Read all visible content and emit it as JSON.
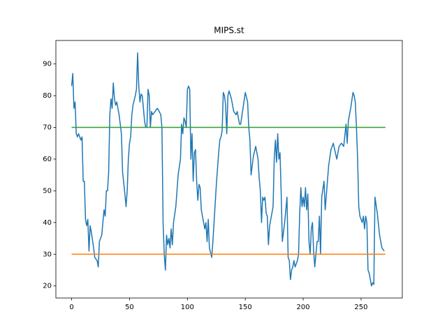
{
  "chart_data": {
    "type": "line",
    "title": "MIPS.st",
    "xlim": [
      -13.6,
      285.6
    ],
    "ylim": [
      16.2,
      97.4
    ],
    "xticks": [
      0,
      50,
      100,
      150,
      200,
      250
    ],
    "yticks": [
      20,
      30,
      40,
      50,
      60,
      70,
      80,
      90
    ],
    "series": [
      {
        "color": "#1f77b4",
        "x": [
          0,
          1,
          2,
          3,
          4,
          5,
          6,
          8,
          9,
          10,
          11,
          12,
          13,
          14,
          15,
          16,
          17,
          19,
          20,
          22,
          23,
          24,
          26,
          27,
          28,
          29,
          30,
          31,
          32,
          33,
          34,
          35,
          36,
          37,
          38,
          39,
          41,
          43,
          44,
          46,
          47,
          48,
          49,
          50,
          51,
          52,
          53,
          55,
          56,
          57,
          58,
          59,
          60,
          61,
          62,
          63,
          64,
          65,
          66,
          67,
          68,
          69,
          70,
          72,
          74,
          75,
          77,
          78,
          79,
          80,
          81,
          82,
          83,
          84,
          85,
          86,
          87,
          88,
          90,
          92,
          94,
          95,
          96,
          97,
          98,
          99,
          100,
          101,
          102,
          103,
          104,
          105,
          106,
          107,
          108,
          109,
          110,
          111,
          112,
          114,
          115,
          116,
          117,
          118,
          119,
          121,
          122,
          123,
          125,
          127,
          128,
          129,
          130,
          131,
          132,
          133,
          134,
          135,
          136,
          138,
          140,
          142,
          143,
          145,
          146,
          148,
          150,
          152,
          153,
          154,
          155,
          156,
          157,
          159,
          161,
          162,
          163,
          164,
          165,
          166,
          167,
          168,
          169,
          170,
          171,
          172,
          174,
          175,
          176,
          177,
          178,
          179,
          180,
          181,
          182,
          183,
          184,
          186,
          187,
          188,
          189,
          190,
          191,
          192,
          193,
          195,
          196,
          197,
          198,
          199,
          200,
          201,
          202,
          203,
          204,
          205,
          206,
          207,
          208,
          209,
          210,
          211,
          212,
          213,
          214,
          215,
          216,
          218,
          219,
          222,
          224,
          226,
          229,
          231,
          233,
          235,
          237,
          238,
          239,
          241,
          243,
          244,
          245,
          246,
          247,
          248,
          249,
          250,
          251,
          252,
          253,
          254,
          255,
          256,
          257,
          258,
          259,
          260,
          261,
          262,
          264,
          266,
          268,
          270
        ],
        "values": [
          83,
          87,
          76,
          78,
          68,
          67,
          68,
          66,
          67,
          53,
          53,
          41,
          39,
          41,
          31,
          39,
          37,
          32,
          29,
          28,
          26,
          34,
          36,
          40,
          44,
          42,
          50,
          50,
          56,
          74,
          79,
          76,
          84,
          79,
          77,
          78,
          74,
          68,
          56,
          49,
          45,
          50,
          60,
          65,
          67,
          74,
          77,
          80,
          82,
          93.5,
          83,
          78,
          80.5,
          80,
          76,
          72,
          70,
          70,
          82,
          80,
          70,
          75,
          74,
          75,
          76,
          75.5,
          74,
          70,
          40,
          30,
          25,
          36,
          33,
          35,
          32,
          38,
          33,
          40,
          45,
          55,
          60,
          71,
          68,
          73,
          72,
          70,
          82,
          83,
          82,
          60,
          68,
          53,
          62,
          63,
          53,
          47,
          52,
          51,
          44,
          40,
          38,
          40,
          34,
          41,
          32,
          29,
          34,
          40,
          52,
          62,
          66,
          67,
          69,
          81,
          80,
          77,
          68,
          80,
          81.5,
          79,
          75,
          74,
          75,
          71,
          71,
          76,
          81,
          78,
          70,
          66,
          55,
          58,
          61,
          64,
          60,
          54,
          50,
          40,
          48,
          47,
          48,
          43,
          42,
          33,
          39,
          41,
          45,
          60,
          66,
          59,
          68,
          60,
          62,
          49,
          34,
          37,
          40,
          48,
          29,
          28,
          22,
          25,
          26,
          28,
          26,
          28,
          30,
          43,
          51,
          45,
          48,
          45,
          51,
          44,
          49,
          34,
          30,
          38,
          40,
          31,
          26,
          30,
          34,
          34,
          42,
          30,
          48,
          53,
          44,
          58,
          63,
          65,
          60,
          64,
          65,
          64,
          71,
          65,
          72,
          76,
          81,
          80,
          78,
          70,
          60,
          45,
          42,
          41,
          40,
          42,
          38,
          42,
          40,
          25,
          24,
          22,
          20,
          21,
          20.5,
          48,
          43,
          36,
          32,
          31
        ]
      },
      {
        "color": "#ff7f0e",
        "x": [
          0,
          271
        ],
        "values": [
          30,
          30
        ]
      },
      {
        "color": "#2ca02c",
        "x": [
          0,
          271
        ],
        "values": [
          70,
          70
        ]
      }
    ]
  }
}
